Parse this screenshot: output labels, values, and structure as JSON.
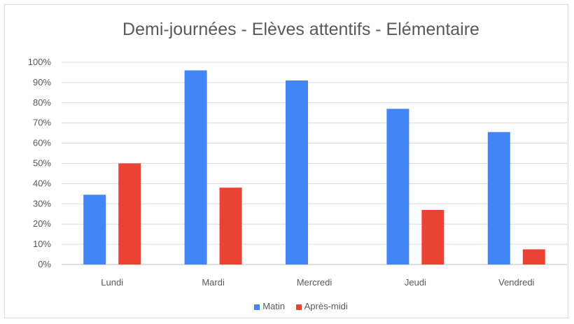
{
  "chart_data": {
    "type": "bar",
    "title": "Demi-journées - Elèves attentifs - Elémentaire",
    "xlabel": "",
    "ylabel": "",
    "categories": [
      "Lundi",
      "Mardi",
      "Mercredi",
      "Jeudi",
      "Vendredi"
    ],
    "series": [
      {
        "name": "Matin",
        "color": "#4285f4",
        "values": [
          34.5,
          96,
          91,
          77,
          65.5
        ]
      },
      {
        "name": "Après-midi",
        "color": "#ea4335",
        "values": [
          50,
          38,
          0,
          27,
          7.5
        ]
      }
    ],
    "ylim": [
      0,
      100
    ],
    "yticks": [
      "0%",
      "10%",
      "20%",
      "30%",
      "40%",
      "50%",
      "60%",
      "70%",
      "80%",
      "90%",
      "100%"
    ],
    "grid": true,
    "legend_position": "bottom"
  }
}
